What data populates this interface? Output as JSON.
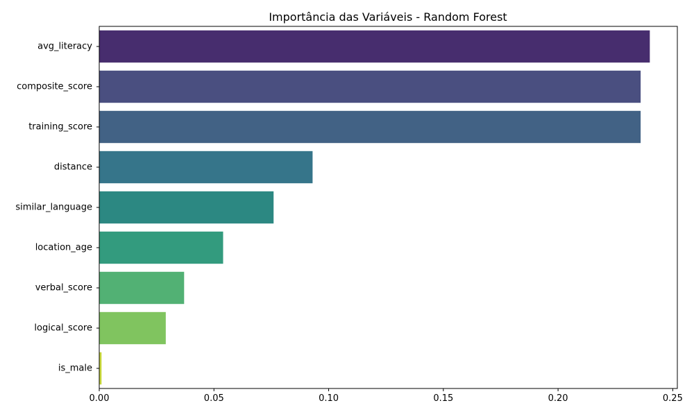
{
  "chart_data": {
    "type": "bar",
    "orientation": "horizontal",
    "title": "Importância das Variáveis - Random Forest",
    "xlabel": "",
    "ylabel": "",
    "categories": [
      "avg_literacy",
      "composite_score",
      "training_score",
      "distance",
      "similar_language",
      "location_age",
      "verbal_score",
      "logical_score",
      "is_male"
    ],
    "values": [
      0.24,
      0.236,
      0.236,
      0.093,
      0.076,
      0.054,
      0.037,
      0.029,
      0.001
    ],
    "colors": [
      "#472d6e",
      "#4a4f80",
      "#426285",
      "#36758a",
      "#2c8882",
      "#339b7e",
      "#52b174",
      "#80c45f",
      "#c8d83a"
    ],
    "xlim": [
      0,
      0.252
    ],
    "xticks": [
      0.0,
      0.05,
      0.1,
      0.15,
      0.2,
      0.25
    ],
    "xtick_labels": [
      "0.00",
      "0.05",
      "0.10",
      "0.15",
      "0.20",
      "0.25"
    ],
    "grid": false,
    "legend": "none"
  }
}
